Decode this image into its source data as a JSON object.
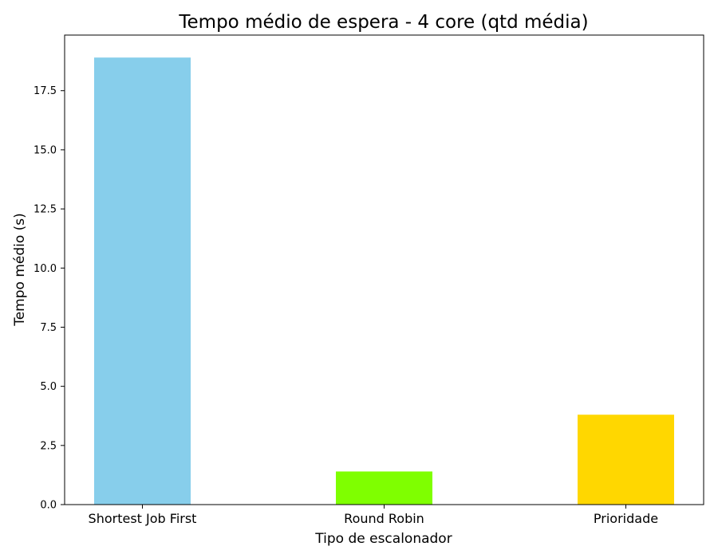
{
  "chart_data": {
    "type": "bar",
    "title": "Tempo médio de espera - 4 core (qtd média)",
    "xlabel": "Tipo de escalonador",
    "ylabel": "Tempo médio (s)",
    "categories": [
      "Shortest Job First",
      "Round Robin",
      "Prioridade"
    ],
    "values": [
      18.9,
      1.4,
      3.8
    ],
    "colors": [
      "#87ceeb",
      "#7fff00",
      "#ffd700"
    ],
    "ylim": [
      0,
      19.85
    ],
    "yticks": [
      0.0,
      2.5,
      5.0,
      7.5,
      10.0,
      12.5,
      15.0,
      17.5
    ],
    "ytick_labels": [
      "0.0",
      "2.5",
      "5.0",
      "7.5",
      "10.0",
      "12.5",
      "15.0",
      "17.5"
    ],
    "grid": false,
    "legend": "none"
  }
}
